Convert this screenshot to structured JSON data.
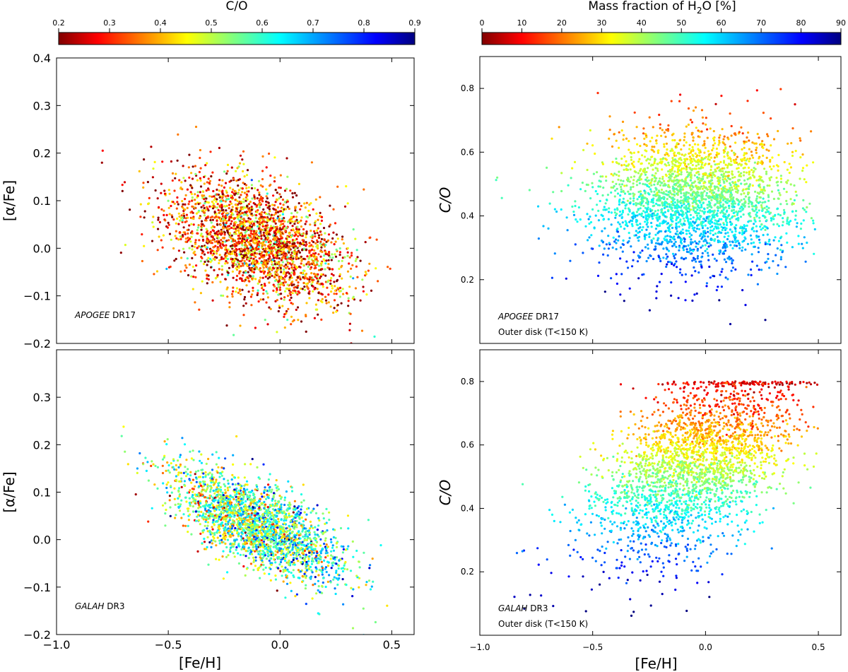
{
  "colorbars": [
    {
      "label": "C/O",
      "range": [
        0.2,
        0.9
      ],
      "ticks": [
        "0.2",
        "0.3",
        "0.4",
        "0.5",
        "0.6",
        "0.7",
        "0.8",
        "0.9"
      ],
      "tick_values": [
        0.2,
        0.3,
        0.4,
        0.5,
        0.6,
        0.7,
        0.8,
        0.9
      ],
      "colormap": "jet_reversed"
    },
    {
      "label": "Mass fraction of H2O [%]",
      "label_prefix": "Mass fraction of H",
      "label_subscript": "2",
      "label_suffix": "O [%]",
      "range": [
        0,
        90
      ],
      "ticks": [
        "0",
        "10",
        "20",
        "30",
        "40",
        "50",
        "60",
        "70",
        "80",
        "90"
      ],
      "tick_values": [
        0,
        10,
        20,
        30,
        40,
        50,
        60,
        70,
        80,
        90
      ],
      "colormap": "jet_reversed"
    }
  ],
  "chart_data": [
    {
      "type": "scatter",
      "id": "apogee-alpha",
      "annotation": "APOGEE DR17",
      "annotation_italic": "APOGEE",
      "annotation_rest": " DR17",
      "xlabel": "",
      "ylabel": "[α/Fe]",
      "xlim": [
        -1.0,
        0.6
      ],
      "ylim": [
        -0.2,
        0.4
      ],
      "xticks": [
        -1.0,
        -0.5,
        0.0,
        0.5
      ],
      "xtick_labels": [
        "",
        "",
        "",
        ""
      ],
      "yticks": [
        -0.2,
        -0.1,
        0.0,
        0.1,
        0.2,
        0.3,
        0.4
      ],
      "ytick_labels": [
        "−0.2",
        "−0.1",
        "0.0",
        "0.1",
        "0.2",
        "0.3",
        "0.4"
      ],
      "color_variable": "C/O",
      "distribution": {
        "n_points": 2600,
        "x_center": -0.1,
        "x_sd": 0.2,
        "x_range": [
          -0.95,
          0.5
        ],
        "slope": -0.15,
        "y_intercept": 0.0,
        "y_sd": 0.06,
        "color_mean": 0.35,
        "color_sd": 0.12,
        "color_slope": 0.0
      }
    },
    {
      "type": "scatter",
      "id": "apogee-co",
      "annotation": "APOGEE DR17",
      "annotation_italic": "APOGEE",
      "annotation_rest": " DR17",
      "subtitle": "Outer disk (T<150 K)",
      "xlabel": "",
      "ylabel": "C/O",
      "xlim": [
        -1.0,
        0.6
      ],
      "ylim": [
        0.0,
        0.9
      ],
      "xticks": [
        -1.0,
        -0.5,
        0.0,
        0.5
      ],
      "xtick_labels": [
        "",
        "",
        "",
        ""
      ],
      "yticks": [
        0.2,
        0.4,
        0.6,
        0.8
      ],
      "ytick_labels": [
        "0.2",
        "0.4",
        "0.6",
        "0.8"
      ],
      "color_variable": "Mass fraction of H2O [%]",
      "distribution": {
        "n_points": 2600,
        "x_center": -0.05,
        "x_sd": 0.22,
        "x_range": [
          -0.98,
          0.5
        ],
        "slope": 0.0,
        "y_intercept": 0.45,
        "y_sd": 0.11,
        "y_cap": 0.8,
        "y_floor": 0.06,
        "color_from_y": true
      }
    },
    {
      "type": "scatter",
      "id": "galah-alpha",
      "annotation": "GALAH DR3",
      "annotation_italic": "GALAH",
      "annotation_rest": " DR3",
      "xlabel": "[Fe/H]",
      "ylabel": "[α/Fe]",
      "xlim": [
        -1.0,
        0.6
      ],
      "ylim": [
        -0.2,
        0.4
      ],
      "xticks": [
        -1.0,
        -0.5,
        0.0,
        0.5
      ],
      "xtick_labels": [
        "−1.0",
        "−0.5",
        "0.0",
        "0.5"
      ],
      "yticks": [
        -0.2,
        -0.1,
        0.0,
        0.1,
        0.2,
        0.3
      ],
      "ytick_labels": [
        "−0.2",
        "−0.1",
        "0.0",
        "0.1",
        "0.2",
        "0.3"
      ],
      "color_variable": "C/O",
      "distribution": {
        "n_points": 2400,
        "x_center": -0.1,
        "x_sd": 0.2,
        "x_range": [
          -0.8,
          0.5
        ],
        "slope": -0.2,
        "y_intercept": 0.01,
        "y_sd": 0.045,
        "color_mean": 0.58,
        "color_sd": 0.12,
        "color_slope": 0.12
      }
    },
    {
      "type": "scatter",
      "id": "galah-co",
      "annotation": "GALAH DR3",
      "annotation_italic": "GALAH",
      "annotation_rest": " DR3",
      "subtitle": "Outer disk (T<150 K)",
      "xlabel": "[Fe/H]",
      "ylabel": "C/O",
      "xlim": [
        -1.0,
        0.6
      ],
      "ylim": [
        0.0,
        0.9
      ],
      "xticks": [
        -1.0,
        -0.5,
        0.0,
        0.5
      ],
      "xtick_labels": [
        "−1.0",
        "−0.5",
        "0.0",
        "0.5"
      ],
      "yticks": [
        0.2,
        0.4,
        0.6,
        0.8
      ],
      "ytick_labels": [
        "0.2",
        "0.4",
        "0.6",
        "0.8"
      ],
      "color_variable": "Mass fraction of H2O [%]",
      "distribution": {
        "n_points": 2600,
        "x_center": -0.05,
        "x_sd": 0.22,
        "x_range": [
          -0.9,
          0.5
        ],
        "slope": 0.35,
        "y_intercept": 0.55,
        "y_sd": 0.13,
        "y_cap": 0.8,
        "y_floor": 0.06,
        "color_from_y": true
      }
    }
  ]
}
